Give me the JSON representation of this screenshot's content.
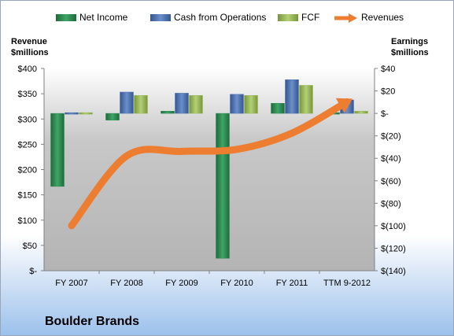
{
  "company": "Boulder Brands",
  "colors": {
    "net_income": "#2e8a52",
    "cash_from_operations": "#4f73b3",
    "fcf": "#9bbb59",
    "revenues": "#ed7d31"
  },
  "legend": {
    "net_income": "Net Income",
    "cash_from_operations": "Cash from Operations",
    "fcf": "FCF",
    "revenues": "Revenues"
  },
  "axis_titles": {
    "left_line1": "Revenue",
    "left_line2": "$millions",
    "right_line1": "Earnings",
    "right_line2": "$millions"
  },
  "chart_data": {
    "type": "bar",
    "categories": [
      "FY 2007",
      "FY 2008",
      "FY 2009",
      "FY 2010",
      "FY 2011",
      "TTM 9-2012"
    ],
    "series": [
      {
        "name": "Net Income",
        "axis": "right",
        "values": [
          -65,
          -6,
          2,
          -129,
          9,
          0
        ]
      },
      {
        "name": "Cash from Operations",
        "axis": "right",
        "values": [
          0.5,
          19,
          18,
          17,
          30,
          12
        ]
      },
      {
        "name": "FCF",
        "axis": "right",
        "values": [
          -1,
          16,
          16,
          16,
          25,
          2
        ]
      },
      {
        "name": "Revenues",
        "type": "line",
        "axis": "left",
        "values": [
          89,
          227,
          236,
          240,
          272,
          334
        ]
      }
    ],
    "left_axis": {
      "ylim": [
        0,
        400
      ],
      "ticks": [
        "$-",
        "$50",
        "$100",
        "$150",
        "$200",
        "$250",
        "$300",
        "$350",
        "$400"
      ]
    },
    "right_axis": {
      "ylim": [
        -140,
        40
      ],
      "ticks": [
        "$(140)",
        "$(120)",
        "$(100)",
        "$(80)",
        "$(60)",
        "$(40)",
        "$(20)",
        "$-",
        "$20",
        "$40"
      ]
    },
    "legend_position": "top",
    "grid": false
  }
}
